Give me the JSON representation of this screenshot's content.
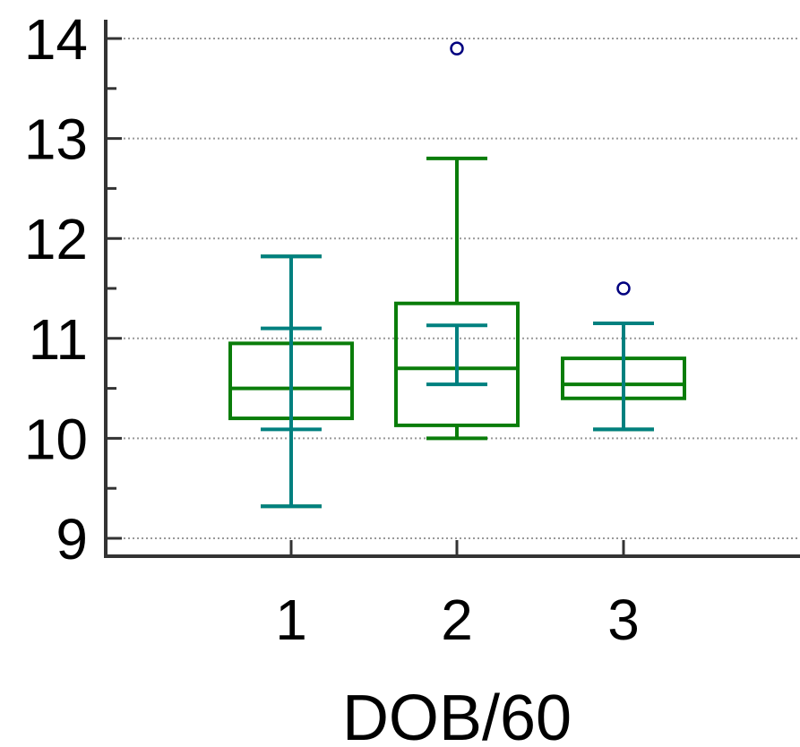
{
  "chart_data": {
    "type": "box",
    "xlabel": "DOB/60",
    "ylabel": "",
    "ylim": [
      8.82,
      14.2
    ],
    "yticks": [
      9,
      10,
      11,
      12,
      13,
      14
    ],
    "ytick_labels": [
      "9",
      "10",
      "11",
      "12",
      "13",
      "14"
    ],
    "y_minor_step": 0.5,
    "grid": "horizontal dotted at major ticks",
    "categories": [
      "1",
      "2",
      "3"
    ],
    "boxes": [
      {
        "category": "1",
        "whisker_low": 9.32,
        "q1": 10.2,
        "median": 10.5,
        "q3": 10.95,
        "whisker_high": 11.82,
        "ci_low": 10.09,
        "ci_high": 11.1,
        "outliers": []
      },
      {
        "category": "2",
        "whisker_low": 10.0,
        "q1": 10.13,
        "median": 10.7,
        "q3": 11.35,
        "whisker_high": 12.8,
        "ci_low": 10.54,
        "ci_high": 11.13,
        "outliers": [
          13.9
        ]
      },
      {
        "category": "3",
        "whisker_low": 10.09,
        "q1": 10.4,
        "median": 10.54,
        "q3": 10.8,
        "whisker_high": 11.15,
        "ci_low": 10.09,
        "ci_high": 11.15,
        "outliers": [
          11.5
        ]
      }
    ],
    "colors": {
      "box": "#0a7d0a",
      "ci": "#00807f",
      "outlier": "#00007f",
      "axis": "#333333",
      "grid": "#999999"
    }
  }
}
